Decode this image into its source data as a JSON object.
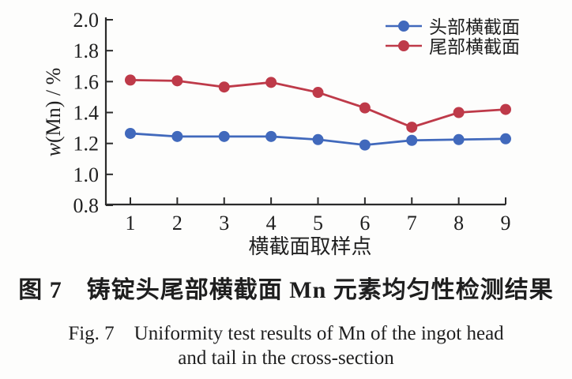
{
  "figure": {
    "caption_zh": "图 7　铸锭头尾部横截面 Mn 元素均匀性检测结果",
    "caption_en_line1": "Fig. 7　Uniformity test results of Mn of the ingot head",
    "caption_en_line2": "and tail in the cross-section"
  },
  "chart_data": {
    "type": "line",
    "x": [
      1,
      2,
      3,
      4,
      5,
      6,
      7,
      8,
      9
    ],
    "xtick_labels": [
      "1",
      "2",
      "3",
      "4",
      "5",
      "6",
      "7",
      "8",
      "9"
    ],
    "xlabel": "横截面取样点",
    "ylabel": "w(Mn) / %",
    "ylabel_parts": {
      "italic": "w",
      "rest": "(Mn) / %"
    },
    "ylim": [
      0.8,
      2.0
    ],
    "ytick_labels": [
      "2.0",
      "1.8",
      "1.6",
      "1.4",
      "1.2",
      "1.0",
      "0.8"
    ],
    "grid": false,
    "legend_position": "top-right",
    "series": [
      {
        "name": "头部横截面",
        "color": "#4169bc",
        "marker": "circle",
        "values": [
          1.265,
          1.245,
          1.245,
          1.245,
          1.225,
          1.19,
          1.22,
          1.225,
          1.23
        ]
      },
      {
        "name": "尾部横截面",
        "color": "#be3a49",
        "marker": "circle",
        "values": [
          1.61,
          1.605,
          1.565,
          1.595,
          1.53,
          1.43,
          1.305,
          1.4,
          1.42
        ]
      }
    ],
    "axis_color": "#2b2b2b",
    "text_color": "#1f1f1f"
  }
}
